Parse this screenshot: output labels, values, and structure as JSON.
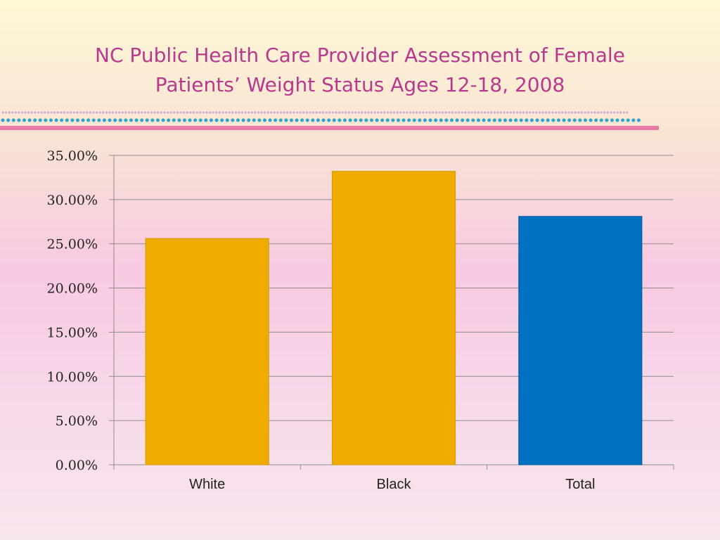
{
  "slide": {
    "title_line1": "NC Public Health Care Provider Assessment of Female",
    "title_line2": "Patients’ Weight Status Ages 12-18, 2008"
  },
  "theme": {
    "title_color": "#b8388e",
    "accent_pink": "#e97aa8",
    "accent_teal": "#2aa8c8",
    "accent_purple": "#c7a6d8"
  },
  "chart_data": {
    "type": "bar",
    "categories": [
      "White",
      "Black",
      "Total"
    ],
    "values": [
      25.6,
      33.2,
      28.1
    ],
    "bar_colors": [
      "#f0ab00",
      "#f0ab00",
      "#0070c0"
    ],
    "ylim": [
      0,
      35
    ],
    "y_ticks": [
      0,
      5,
      10,
      15,
      20,
      25,
      30,
      35
    ],
    "y_tick_labels": [
      "0.00%",
      "5.00%",
      "10.00%",
      "15.00%",
      "20.00%",
      "25.00%",
      "30.00%",
      "35.00%"
    ],
    "grid": true,
    "legend": "none"
  }
}
